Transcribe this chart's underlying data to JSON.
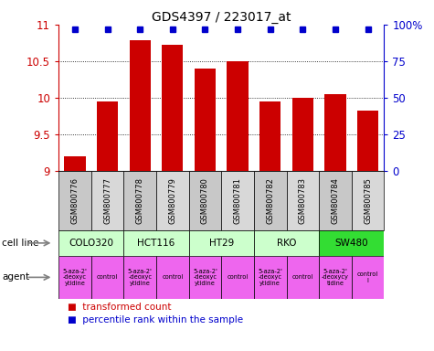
{
  "title": "GDS4397 / 223017_at",
  "samples": [
    "GSM800776",
    "GSM800777",
    "GSM800778",
    "GSM800779",
    "GSM800780",
    "GSM800781",
    "GSM800782",
    "GSM800783",
    "GSM800784",
    "GSM800785"
  ],
  "bar_values": [
    9.2,
    9.95,
    10.78,
    10.72,
    10.4,
    10.5,
    9.95,
    10.0,
    10.05,
    9.82
  ],
  "ylim": [
    9.0,
    11.0
  ],
  "yticks": [
    9.0,
    9.5,
    10.0,
    10.5,
    11.0
  ],
  "ytick_labels": [
    "9",
    "9.5",
    "10",
    "10.5",
    "11"
  ],
  "right_yticks": [
    0,
    25,
    50,
    75,
    100
  ],
  "right_ytick_labels": [
    "0",
    "25",
    "50",
    "75",
    "100%"
  ],
  "bar_color": "#cc0000",
  "dot_color": "#0000cc",
  "cell_lines": [
    {
      "name": "COLO320",
      "start": 0,
      "end": 2,
      "color": "#ccffcc"
    },
    {
      "name": "HCT116",
      "start": 2,
      "end": 4,
      "color": "#ccffcc"
    },
    {
      "name": "HT29",
      "start": 4,
      "end": 6,
      "color": "#ccffcc"
    },
    {
      "name": "RKO",
      "start": 6,
      "end": 8,
      "color": "#ccffcc"
    },
    {
      "name": "SW480",
      "start": 8,
      "end": 10,
      "color": "#33dd33"
    }
  ],
  "agents": [
    {
      "name": "5-aza-2'\n-deoxyc\nytidine",
      "start": 0,
      "end": 1,
      "color": "#ee66ee"
    },
    {
      "name": "control",
      "start": 1,
      "end": 2,
      "color": "#ee66ee"
    },
    {
      "name": "5-aza-2'\n-deoxyc\nytidine",
      "start": 2,
      "end": 3,
      "color": "#ee66ee"
    },
    {
      "name": "control",
      "start": 3,
      "end": 4,
      "color": "#ee66ee"
    },
    {
      "name": "5-aza-2'\n-deoxyc\nytidine",
      "start": 4,
      "end": 5,
      "color": "#ee66ee"
    },
    {
      "name": "control",
      "start": 5,
      "end": 6,
      "color": "#ee66ee"
    },
    {
      "name": "5-aza-2'\n-deoxyc\nytidine",
      "start": 6,
      "end": 7,
      "color": "#ee66ee"
    },
    {
      "name": "control",
      "start": 7,
      "end": 8,
      "color": "#ee66ee"
    },
    {
      "name": "5-aza-2'\n-deoxycy\ntidine",
      "start": 8,
      "end": 9,
      "color": "#ee66ee"
    },
    {
      "name": "control\nl",
      "start": 9,
      "end": 10,
      "color": "#ee66ee"
    }
  ],
  "legend_red": "transformed count",
  "legend_blue": "percentile rank within the sample",
  "cell_line_label": "cell line",
  "agent_label": "agent",
  "sample_bg_odd": "#c8c8c8",
  "sample_bg_even": "#d8d8d8"
}
